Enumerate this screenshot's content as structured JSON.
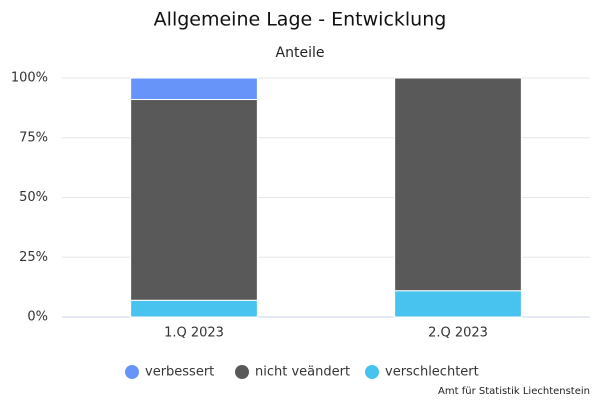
{
  "chart_data": {
    "type": "stacked_bar",
    "title": "Allgemeine Lage - Entwicklung",
    "subtitle": "Anteile",
    "categories": [
      "1.Q 2023",
      "2.Q 2023"
    ],
    "series": [
      {
        "name": "verbessert",
        "color": "#6794f8",
        "values": [
          9,
          0
        ]
      },
      {
        "name": "nicht veändert",
        "color": "#595959",
        "values": [
          84,
          89
        ]
      },
      {
        "name": "verschlechtert",
        "color": "#48c3f0",
        "values": [
          7,
          11
        ]
      }
    ],
    "ylim": [
      0,
      100
    ],
    "yticks": [
      {
        "value": 0,
        "label": "0%"
      },
      {
        "value": 25,
        "label": "25%"
      },
      {
        "value": 50,
        "label": "50%"
      },
      {
        "value": 75,
        "label": "75%"
      },
      {
        "value": 100,
        "label": "100%"
      }
    ],
    "grid": true,
    "legend": "bottom",
    "credit": "Amt für Statistik Liechtenstein"
  }
}
